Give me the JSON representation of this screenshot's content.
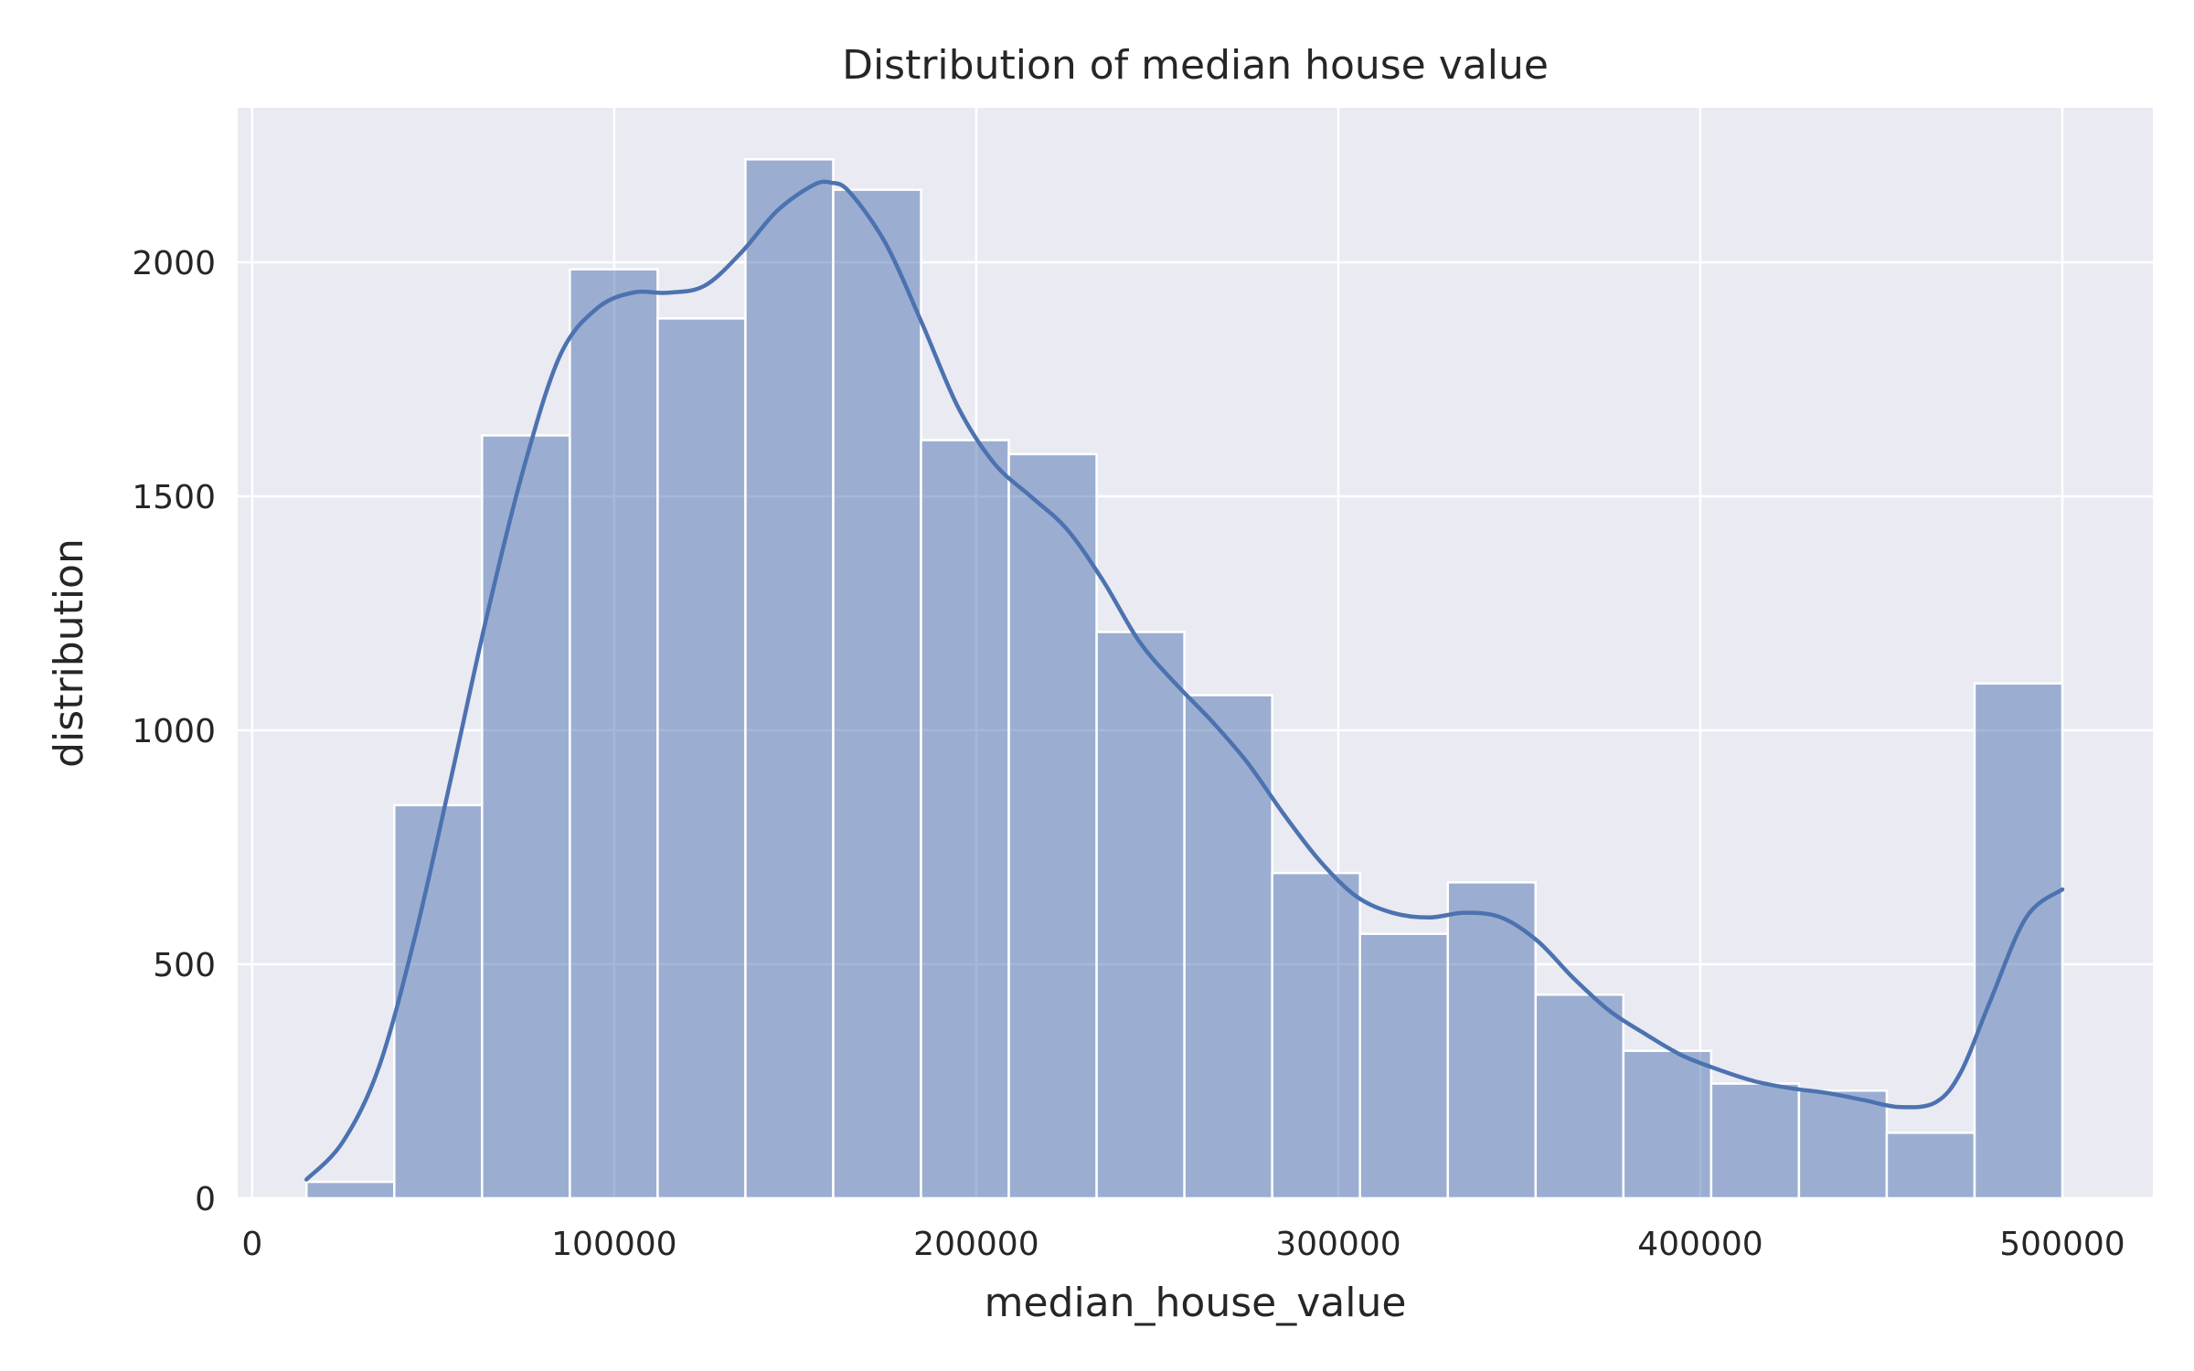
{
  "chart_data": {
    "type": "bar",
    "subtype": "histogram_with_kde",
    "title": "Distribution of median house value",
    "xlabel": "median_house_value",
    "ylabel": "distribution",
    "xlim": [
      -4000,
      525000
    ],
    "ylim": [
      0,
      2330
    ],
    "x_ticks": [
      0,
      100000,
      200000,
      300000,
      400000,
      500000
    ],
    "y_ticks": [
      0,
      500,
      1000,
      1500,
      2000
    ],
    "x_tick_labels": [
      "0",
      "100000",
      "200000",
      "300000",
      "400000",
      "500000"
    ],
    "y_tick_labels": [
      "0",
      "500",
      "1000",
      "1500",
      "2000"
    ],
    "grid": true,
    "colors": {
      "background": "#EAEAF2",
      "grid": "#FFFFFF",
      "bar_fill": "#4C72B0",
      "bar_fill_opacity": 0.5,
      "bar_edge": "#FFFFFF",
      "kde_line": "#4C72B0",
      "text": "#262626"
    },
    "bins": {
      "start": 15000,
      "width": 24250,
      "count": 20
    },
    "values": [
      35,
      840,
      1630,
      1985,
      1880,
      2220,
      2155,
      1620,
      1590,
      1210,
      1075,
      695,
      565,
      675,
      435,
      315,
      245,
      230,
      140,
      1100
    ],
    "kde": {
      "x": [
        15000,
        25000,
        35000,
        45000,
        55000,
        65000,
        75000,
        85000,
        95000,
        105000,
        115000,
        125000,
        135000,
        145000,
        155000,
        160000,
        165000,
        175000,
        185000,
        195000,
        205000,
        215000,
        225000,
        235000,
        245000,
        255000,
        265000,
        275000,
        285000,
        295000,
        305000,
        315000,
        325000,
        335000,
        345000,
        355000,
        365000,
        375000,
        385000,
        395000,
        405000,
        415000,
        425000,
        435000,
        445000,
        455000,
        465000,
        472000,
        480000,
        490000,
        500000
      ],
      "y": [
        40,
        120,
        280,
        560,
        900,
        1250,
        1560,
        1800,
        1900,
        1935,
        1935,
        1950,
        2020,
        2110,
        2165,
        2170,
        2150,
        2040,
        1870,
        1690,
        1570,
        1500,
        1430,
        1320,
        1190,
        1100,
        1020,
        930,
        820,
        720,
        645,
        610,
        600,
        610,
        600,
        550,
        470,
        400,
        350,
        305,
        275,
        250,
        235,
        225,
        210,
        195,
        205,
        270,
        420,
        600,
        660
      ]
    }
  }
}
